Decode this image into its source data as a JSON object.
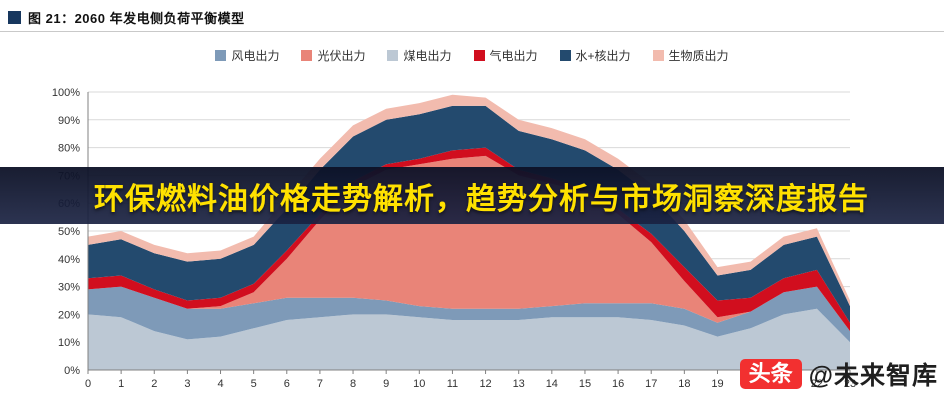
{
  "header": {
    "title": "图 21：2060 年发电侧负荷平衡模型"
  },
  "legend": {
    "items": [
      {
        "label": "风电出力",
        "color": "#7E9AB8"
      },
      {
        "label": "光伏出力",
        "color": "#E98478"
      },
      {
        "label": "煤电出力",
        "color": "#BCC8D4"
      },
      {
        "label": "气电出力",
        "color": "#D10E1E"
      },
      {
        "label": "水+核出力",
        "color": "#234A6E"
      },
      {
        "label": "生物质出力",
        "color": "#F2BBAE"
      }
    ]
  },
  "chart_data": {
    "type": "area",
    "stacked": true,
    "title": "2060 年发电侧负荷平衡模型",
    "xlabel": "",
    "ylabel": "",
    "legend_position": "top",
    "grid": true,
    "x": [
      0,
      1,
      2,
      3,
      4,
      5,
      6,
      7,
      8,
      9,
      10,
      11,
      12,
      13,
      14,
      15,
      16,
      17,
      18,
      19,
      20,
      21,
      22,
      23
    ],
    "ylim": [
      0,
      100
    ],
    "y_tick_step": 10,
    "y_tick_suffix": "%",
    "series": [
      {
        "name": "煤电出力",
        "color": "#BCC8D4",
        "values": [
          20,
          19,
          14,
          11,
          12,
          15,
          18,
          19,
          20,
          20,
          19,
          18,
          18,
          18,
          19,
          19,
          19,
          18,
          16,
          12,
          15,
          20,
          22,
          10
        ]
      },
      {
        "name": "风电出力",
        "color": "#7E9AB8",
        "values": [
          9,
          11,
          12,
          11,
          10,
          9,
          8,
          7,
          6,
          5,
          4,
          4,
          4,
          4,
          4,
          5,
          5,
          6,
          6,
          5,
          6,
          8,
          8,
          4
        ]
      },
      {
        "name": "光伏出力",
        "color": "#E98478",
        "values": [
          0,
          0,
          0,
          0,
          1,
          4,
          14,
          28,
          40,
          47,
          51,
          54,
          55,
          48,
          44,
          40,
          32,
          22,
          10,
          2,
          0,
          0,
          0,
          0
        ]
      },
      {
        "name": "气电出力",
        "color": "#D10E1E",
        "values": [
          4,
          4,
          3,
          3,
          3,
          3,
          3,
          2,
          2,
          2,
          2,
          3,
          3,
          2,
          2,
          1,
          2,
          3,
          5,
          6,
          5,
          5,
          6,
          3
        ]
      },
      {
        "name": "水+核出力",
        "color": "#234A6E",
        "values": [
          12,
          13,
          13,
          14,
          14,
          14,
          15,
          16,
          16,
          16,
          16,
          16,
          15,
          14,
          14,
          14,
          14,
          14,
          13,
          9,
          10,
          12,
          12,
          6
        ]
      },
      {
        "name": "生物质出力",
        "color": "#F2BBAE",
        "values": [
          3,
          3,
          3,
          3,
          3,
          3,
          4,
          4,
          4,
          4,
          4,
          4,
          3,
          4,
          4,
          4,
          4,
          4,
          4,
          3,
          3,
          3,
          3,
          2
        ]
      }
    ]
  },
  "banner": {
    "text": "环保燃料油价格走势解析，趋势分析与市场洞察深度报告"
  },
  "watermark": {
    "badge": "头条",
    "handle": "@未来智库"
  }
}
